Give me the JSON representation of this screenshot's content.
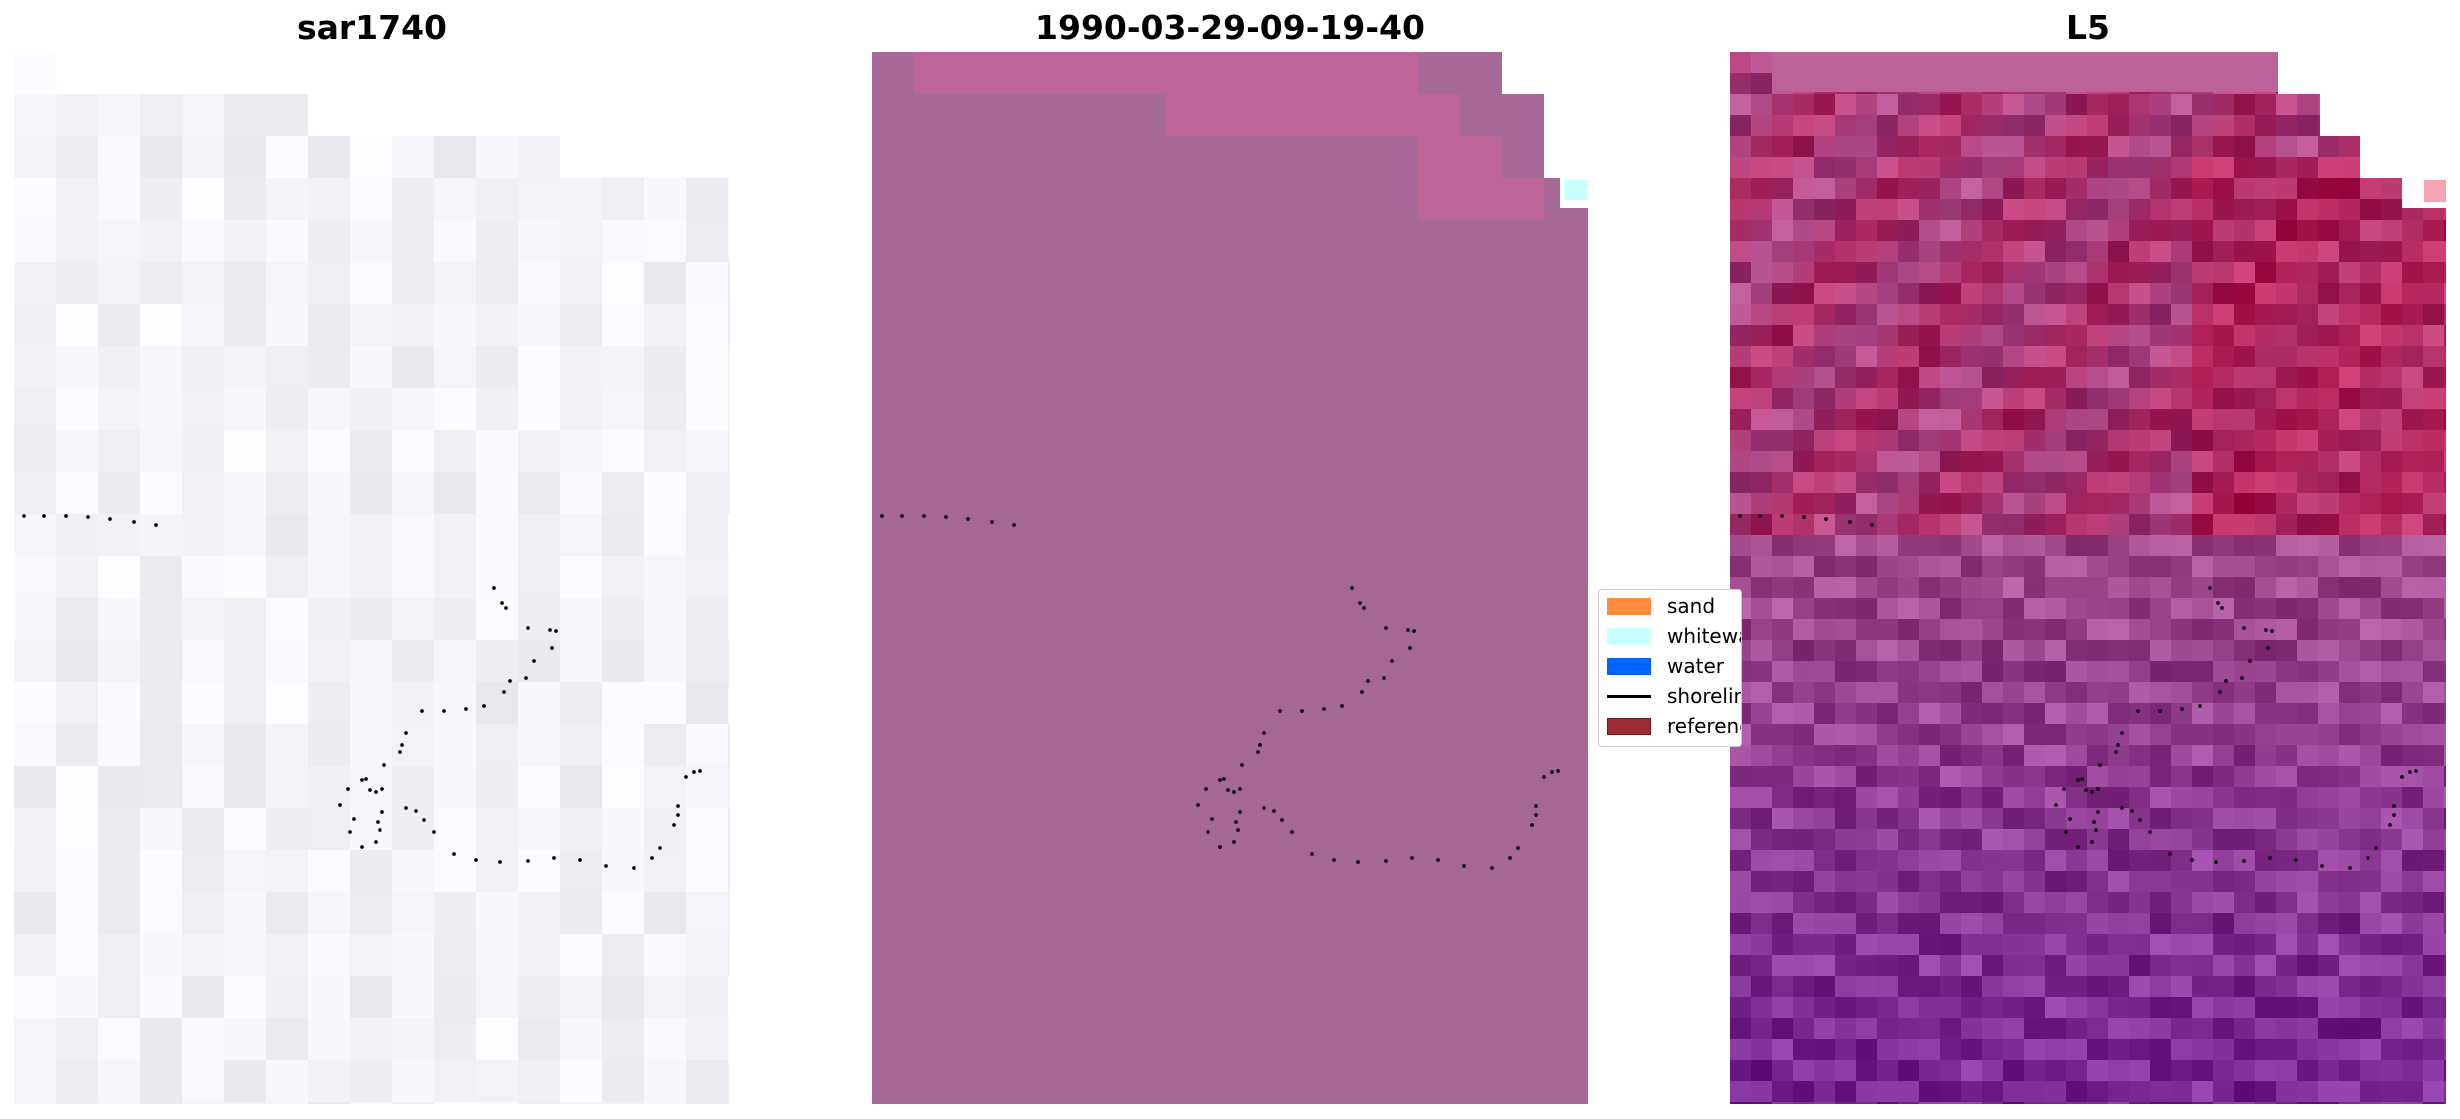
{
  "panels": [
    {
      "title": "sar1740"
    },
    {
      "title": "1990-03-29-09-19-40"
    },
    {
      "title": "L5"
    }
  ],
  "legend": {
    "items": [
      {
        "label": "sand",
        "color": "#ff8c3c",
        "kind": "patch"
      },
      {
        "label": "whitewater",
        "color": "#c8ffff",
        "kind": "patch"
      },
      {
        "label": "water",
        "color": "#0064ff",
        "kind": "patch"
      },
      {
        "label": "shoreline",
        "color": "#000000",
        "kind": "line"
      },
      {
        "label": "reference",
        "color": "#9b2d32",
        "kind": "patch-outlined"
      }
    ]
  },
  "colors": {
    "panel1_base": "#f8f7fe",
    "panel2_base": "#a56897",
    "panel2_sand_overlay": "#bd6597",
    "panel2_whitewater": "#c8ffff",
    "panel3_top": "#c42b5e",
    "panel3_middle": "#b35a9b",
    "panel3_bottom": "#8a3aa6",
    "panel3_band": "#bc6299",
    "panel3_corner": "#f4a5b0",
    "shoreline_dots": "#000000"
  }
}
